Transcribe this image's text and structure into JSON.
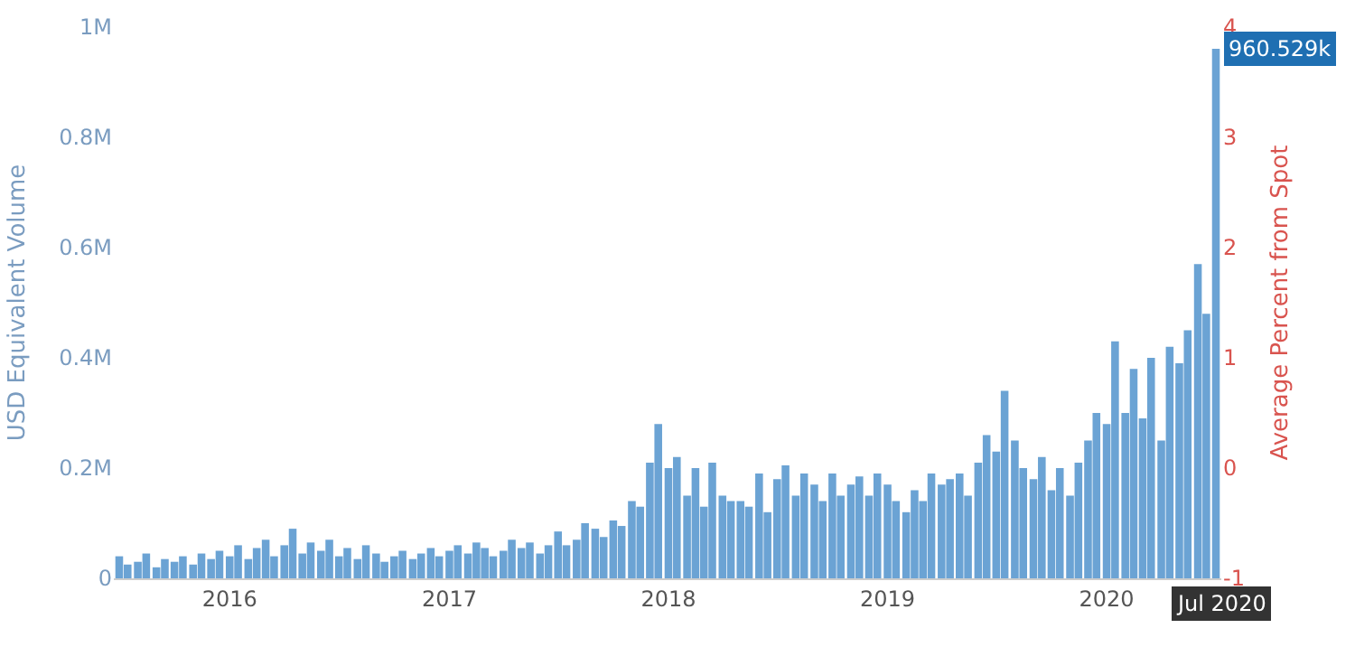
{
  "chart_data": {
    "type": "bar",
    "ylabel": "USD Equivalent Volume",
    "y2label": "Average Percent from Spot",
    "color": "#6ba3d4",
    "x": [
      "2015-07-01",
      "2015-07-15",
      "2015-08-01",
      "2015-08-15",
      "2015-09-01",
      "2015-09-15",
      "2015-10-01",
      "2015-10-15",
      "2015-11-01",
      "2015-11-15",
      "2015-12-01",
      "2015-12-15",
      "2016-01-01",
      "2016-01-15",
      "2016-02-01",
      "2016-02-15",
      "2016-03-01",
      "2016-03-15",
      "2016-04-01",
      "2016-04-15",
      "2016-05-01",
      "2016-05-15",
      "2016-06-01",
      "2016-06-15",
      "2016-07-01",
      "2016-07-15",
      "2016-08-01",
      "2016-08-15",
      "2016-09-01",
      "2016-09-15",
      "2016-10-01",
      "2016-10-15",
      "2016-11-01",
      "2016-11-15",
      "2016-12-01",
      "2016-12-15",
      "2017-01-01",
      "2017-01-15",
      "2017-02-01",
      "2017-02-15",
      "2017-03-01",
      "2017-03-15",
      "2017-04-01",
      "2017-04-15",
      "2017-05-01",
      "2017-05-15",
      "2017-06-01",
      "2017-06-15",
      "2017-07-01",
      "2017-07-15",
      "2017-08-01",
      "2017-08-15",
      "2017-09-01",
      "2017-09-15",
      "2017-10-01",
      "2017-10-15",
      "2017-11-01",
      "2017-11-15",
      "2017-12-01",
      "2017-12-15",
      "2018-01-01",
      "2018-01-15",
      "2018-02-01",
      "2018-02-15",
      "2018-03-01",
      "2018-03-15",
      "2018-04-01",
      "2018-04-15",
      "2018-05-01",
      "2018-05-15",
      "2018-06-01",
      "2018-06-15",
      "2018-07-01",
      "2018-07-15",
      "2018-08-01",
      "2018-08-15",
      "2018-09-01",
      "2018-09-15",
      "2018-10-01",
      "2018-10-15",
      "2018-11-01",
      "2018-11-15",
      "2018-12-01",
      "2018-12-15",
      "2019-01-01",
      "2019-01-15",
      "2019-02-01",
      "2019-02-15",
      "2019-03-01",
      "2019-03-15",
      "2019-04-01",
      "2019-04-15",
      "2019-05-01",
      "2019-05-15",
      "2019-06-01",
      "2019-06-15",
      "2019-07-01",
      "2019-07-15",
      "2019-08-01",
      "2019-08-15",
      "2019-09-01",
      "2019-09-15",
      "2019-10-01",
      "2019-10-15",
      "2019-11-01",
      "2019-11-15",
      "2019-12-01",
      "2019-12-15",
      "2020-01-01",
      "2020-01-15",
      "2020-02-01",
      "2020-02-15",
      "2020-03-01",
      "2020-03-15",
      "2020-04-01",
      "2020-04-15",
      "2020-05-01",
      "2020-05-15",
      "2020-06-01",
      "2020-06-15",
      "2020-07-01"
    ],
    "values": [
      40000,
      25000,
      30000,
      45000,
      20000,
      35000,
      30000,
      40000,
      25000,
      45000,
      35000,
      50000,
      40000,
      60000,
      35000,
      55000,
      70000,
      40000,
      60000,
      90000,
      45000,
      65000,
      50000,
      70000,
      40000,
      55000,
      35000,
      60000,
      45000,
      30000,
      40000,
      50000,
      35000,
      45000,
      55000,
      40000,
      50000,
      60000,
      45000,
      65000,
      55000,
      40000,
      50000,
      70000,
      55000,
      65000,
      45000,
      60000,
      85000,
      60000,
      70000,
      100000,
      90000,
      75000,
      105000,
      95000,
      140000,
      130000,
      210000,
      280000,
      200000,
      220000,
      150000,
      200000,
      130000,
      210000,
      150000,
      140000,
      140000,
      130000,
      190000,
      120000,
      180000,
      205000,
      150000,
      190000,
      170000,
      140000,
      190000,
      150000,
      170000,
      185000,
      150000,
      190000,
      170000,
      140000,
      120000,
      160000,
      140000,
      190000,
      170000,
      180000,
      190000,
      150000,
      210000,
      260000,
      230000,
      340000,
      250000,
      200000,
      180000,
      220000,
      160000,
      200000,
      150000,
      210000,
      250000,
      300000,
      280000,
      430000,
      300000,
      380000,
      290000,
      400000,
      250000,
      420000,
      390000,
      450000,
      570000,
      480000,
      960529
    ],
    "xlim": [
      "2015-06-22",
      "2020-07-10"
    ],
    "xticks": [
      "2016",
      "2017",
      "2018",
      "2019",
      "2020"
    ],
    "ylim": [
      0,
      1000000
    ],
    "yticks": [
      {
        "value": 0,
        "label": "0"
      },
      {
        "value": 200000,
        "label": "0.2M"
      },
      {
        "value": 400000,
        "label": "0.4M"
      },
      {
        "value": 600000,
        "label": "0.6M"
      },
      {
        "value": 800000,
        "label": "0.8M"
      },
      {
        "value": 1000000,
        "label": "1M"
      }
    ],
    "y2lim": [
      -1,
      4
    ],
    "y2ticks": [
      -1,
      0,
      1,
      2,
      3,
      4
    ],
    "annotations": [
      {
        "text": "960.529k",
        "x": "2020-07-01",
        "y": 960529
      },
      "Jul 2020"
    ]
  }
}
